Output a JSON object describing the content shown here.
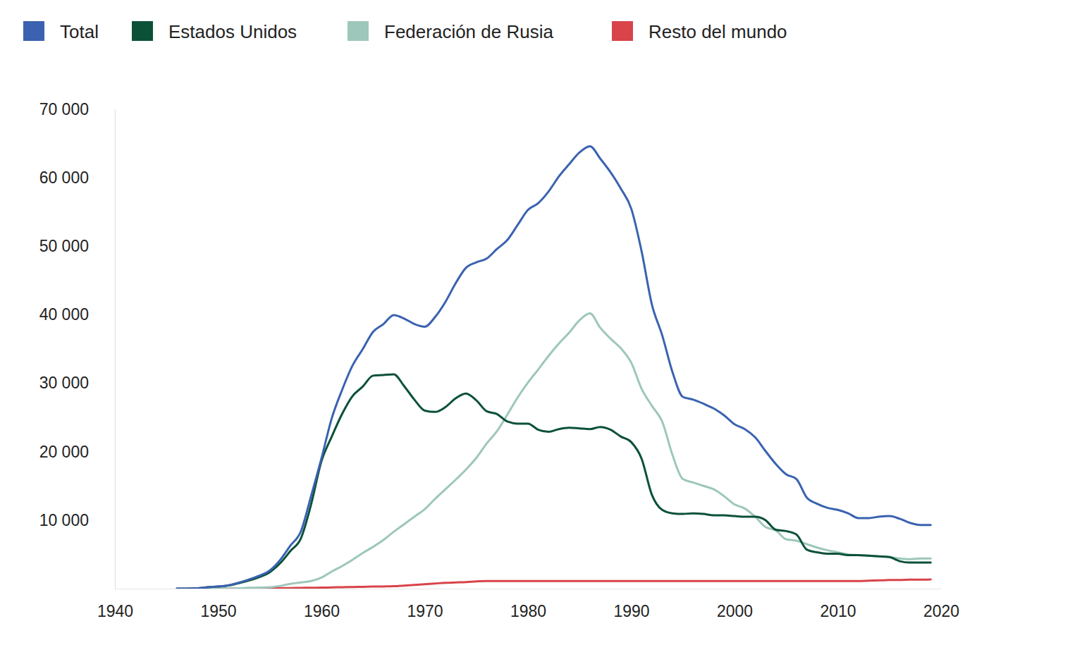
{
  "chart_data": {
    "type": "line",
    "legend": "top",
    "grid": false,
    "x": [
      1946,
      1947,
      1948,
      1949,
      1950,
      1951,
      1952,
      1953,
      1954,
      1955,
      1956,
      1957,
      1958,
      1959,
      1960,
      1961,
      1962,
      1963,
      1964,
      1965,
      1966,
      1967,
      1968,
      1969,
      1970,
      1971,
      1972,
      1973,
      1974,
      1975,
      1976,
      1977,
      1978,
      1979,
      1980,
      1981,
      1982,
      1983,
      1984,
      1985,
      1986,
      1987,
      1988,
      1989,
      1990,
      1991,
      1992,
      1993,
      1994,
      1995,
      1996,
      1997,
      1998,
      1999,
      2000,
      2001,
      2002,
      2003,
      2004,
      2005,
      2006,
      2007,
      2008,
      2009,
      2010,
      2011,
      2012,
      2013,
      2014,
      2015,
      2016,
      2017,
      2018,
      2019
    ],
    "xlim": [
      1940,
      2020
    ],
    "xticks": [
      1940,
      1950,
      1960,
      1970,
      1980,
      1990,
      2000,
      2010,
      2020
    ],
    "ylim": [
      0,
      70000
    ],
    "yticks": [
      {
        "value": 10000,
        "label": "10 000"
      },
      {
        "value": 20000,
        "label": "20 000"
      },
      {
        "value": 30000,
        "label": "30 000"
      },
      {
        "value": 40000,
        "label": "40 000"
      },
      {
        "value": 50000,
        "label": "50 000"
      },
      {
        "value": 60000,
        "label": "60 000"
      },
      {
        "value": 70000,
        "label": "70 000"
      }
    ],
    "series": [
      {
        "name": "Total",
        "color": "#3a62b0",
        "values": [
          10,
          10,
          50,
          200,
          305,
          485,
          870,
          1350,
          1890,
          2650,
          4170,
          6290,
          8310,
          13530,
          19000,
          24880,
          29010,
          32540,
          34970,
          37500,
          38620,
          39950,
          39450,
          38650,
          38250,
          39650,
          41850,
          44600,
          46850,
          47650,
          48200,
          49600,
          50900,
          53100,
          55300,
          56300,
          58000,
          60200,
          62000,
          63700,
          64600,
          62800,
          60800,
          58400,
          55500,
          49300,
          41500,
          37000,
          31600,
          28000,
          27600,
          27000,
          26300,
          25300,
          24000,
          23300,
          22100,
          20100,
          18200,
          16700,
          16000,
          13300,
          12400,
          11800,
          11500,
          11000,
          10300,
          10300,
          10500,
          10600,
          10200,
          9600,
          9300,
          9300
        ]
      },
      {
        "name": "Estados Unidos",
        "color": "#0b5138",
        "values": [
          10,
          10,
          50,
          200,
          300,
          450,
          800,
          1200,
          1700,
          2400,
          3700,
          5500,
          7300,
          12300,
          18600,
          22200,
          25500,
          28100,
          29500,
          31100,
          31200,
          31300,
          29600,
          27600,
          26000,
          25800,
          26500,
          27800,
          28500,
          27500,
          25900,
          25500,
          24400,
          24100,
          24100,
          23200,
          22900,
          23300,
          23500,
          23400,
          23300,
          23600,
          23200,
          22200,
          21400,
          19000,
          13700,
          11500,
          11000,
          10900,
          11000,
          10900,
          10700,
          10700,
          10600,
          10500,
          10500,
          10000,
          8600,
          8400,
          7900,
          5700,
          5300,
          5100,
          5100,
          4900,
          4900,
          4800,
          4700,
          4600,
          4000,
          3800,
          3800,
          3800
        ]
      },
      {
        "name": "Federación de Rusia",
        "color": "#9dc7bb",
        "values": [
          null,
          null,
          null,
          0,
          5,
          25,
          50,
          120,
          150,
          200,
          400,
          700,
          900,
          1100,
          1600,
          2500,
          3300,
          4200,
          5200,
          6100,
          7100,
          8300,
          9400,
          10500,
          11600,
          13100,
          14500,
          15900,
          17400,
          19100,
          21200,
          23000,
          25400,
          27900,
          30100,
          32000,
          34000,
          35800,
          37400,
          39200,
          40200,
          38100,
          36500,
          35100,
          33000,
          29200,
          26700,
          24400,
          19500,
          16000,
          15500,
          15000,
          14500,
          13500,
          12300,
          11700,
          10500,
          9000,
          8500,
          7200,
          7000,
          6500,
          6000,
          5600,
          5300,
          5000,
          4900,
          4800,
          4700,
          4600,
          4400,
          4300,
          4400,
          4400
        ]
      },
      {
        "name": "Resto del mundo",
        "color": "#d9434a",
        "values": [
          null,
          null,
          null,
          null,
          0,
          10,
          20,
          30,
          40,
          50,
          70,
          90,
          110,
          130,
          150,
          180,
          210,
          240,
          270,
          300,
          320,
          350,
          450,
          550,
          650,
          750,
          850,
          900,
          950,
          1050,
          1100,
          1100,
          1100,
          1100,
          1100,
          1100,
          1100,
          1100,
          1100,
          1100,
          1100,
          1100,
          1100,
          1100,
          1100,
          1100,
          1100,
          1100,
          1100,
          1100,
          1100,
          1100,
          1100,
          1100,
          1100,
          1100,
          1100,
          1100,
          1100,
          1100,
          1100,
          1100,
          1100,
          1100,
          1100,
          1100,
          1100,
          1150,
          1200,
          1250,
          1250,
          1300,
          1300,
          1350
        ]
      }
    ]
  }
}
